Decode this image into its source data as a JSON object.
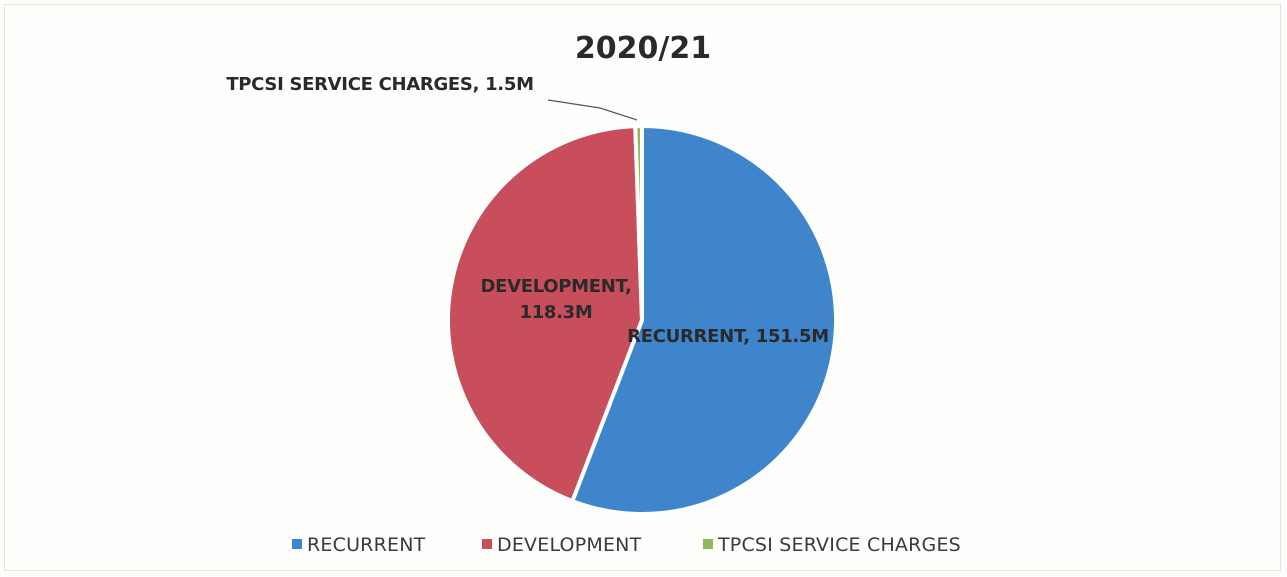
{
  "chart_data": {
    "type": "pie",
    "title": "2020/21",
    "start_angle_deg": 0,
    "direction": "clockwise",
    "slices": [
      {
        "name": "RECURRENT",
        "value": 151.5,
        "label": "RECURRENT, 151.5M",
        "color": "#3f85cc"
      },
      {
        "name": "DEVELOPMENT",
        "value": 118.3,
        "label": "DEVELOPMENT, 118.3M",
        "label_lines": [
          "DEVELOPMENT,",
          "118.3M"
        ],
        "color": "#c84e5c"
      },
      {
        "name": "TPCSI SERVICE CHARGES",
        "value": 1.5,
        "label": "TPCSI SERVICE CHARGES, 1.5M",
        "color": "#93b85a"
      }
    ],
    "legend": {
      "position": "bottom",
      "entries": [
        "RECURRENT",
        "DEVELOPMENT",
        "TPCSI SERVICE CHARGES"
      ]
    },
    "units": "M"
  }
}
